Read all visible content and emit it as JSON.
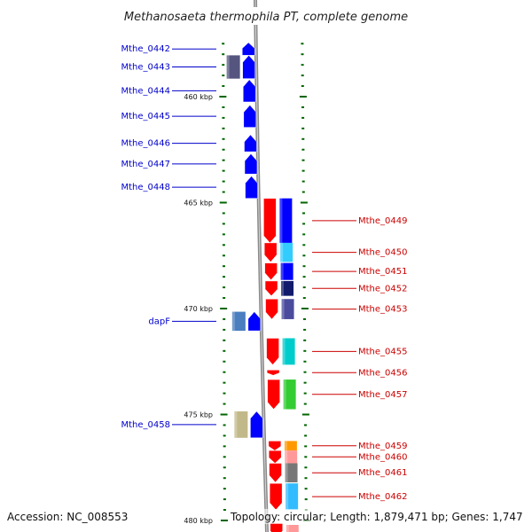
{
  "title": "Methanosaeta thermophila PT, complete genome",
  "accession": "Accession: NC_008553",
  "topology": "Topology: circular; Length: 1,879,471 bp; Genes: 1,747",
  "colors": {
    "backbone": "#8a8a8a",
    "forward_gene": "#ff0000",
    "reverse_gene": "#0000ff",
    "tick": "#006600",
    "left_label": "#0000cc",
    "right_label": "#cc0000"
  },
  "scale_labels": [
    {
      "text": "460 kbp",
      "kbp": 460
    },
    {
      "text": "465 kbp",
      "kbp": 465
    },
    {
      "text": "470 kbp",
      "kbp": 470
    },
    {
      "text": "475 kbp",
      "kbp": 475
    },
    {
      "text": "480 kbp",
      "kbp": 480
    }
  ],
  "left_genes": [
    {
      "label": "Mthe_0442",
      "start_kbp": 457.45,
      "end_kbp": 458.05,
      "cog": null
    },
    {
      "label": "Mthe_0443",
      "start_kbp": 458.05,
      "end_kbp": 459.15,
      "cog": "#555580"
    },
    {
      "label": "Mthe_0444",
      "start_kbp": 459.2,
      "end_kbp": 460.25,
      "cog": null
    },
    {
      "label": "Mthe_0445",
      "start_kbp": 460.4,
      "end_kbp": 461.45,
      "cog": null
    },
    {
      "label": "Mthe_0446",
      "start_kbp": 461.8,
      "end_kbp": 462.6,
      "cog": null
    },
    {
      "label": "Mthe_0447",
      "start_kbp": 462.7,
      "end_kbp": 463.65,
      "cog": null
    },
    {
      "label": "Mthe_0448",
      "start_kbp": 463.75,
      "end_kbp": 464.8,
      "cog": null
    },
    {
      "label": "dapF",
      "start_kbp": 470.15,
      "end_kbp": 471.05,
      "cog": "#4a7ebf"
    },
    {
      "label": "Mthe_0458",
      "start_kbp": 474.85,
      "end_kbp": 476.1,
      "cog": "#c2b98a"
    }
  ],
  "right_genes": [
    {
      "label": "Mthe_0449",
      "start_kbp": 464.8,
      "end_kbp": 466.9,
      "cog": "#0000ff"
    },
    {
      "label": "Mthe_0450",
      "start_kbp": 466.9,
      "end_kbp": 467.8,
      "cog": "#33ccff"
    },
    {
      "label": "Mthe_0451",
      "start_kbp": 467.85,
      "end_kbp": 468.65,
      "cog": "#0000ff"
    },
    {
      "label": "Mthe_0452",
      "start_kbp": 468.7,
      "end_kbp": 469.4,
      "cog": "#111a6b"
    },
    {
      "label": "Mthe_0453",
      "start_kbp": 469.55,
      "end_kbp": 470.5,
      "cog": "#4b4b9e"
    },
    {
      "label": "Mthe_0455",
      "start_kbp": 471.4,
      "end_kbp": 472.65,
      "cog": "#00cccc"
    },
    {
      "label": "Mthe_0456",
      "start_kbp": 472.9,
      "end_kbp": 473.15,
      "cog": null
    },
    {
      "label": "Mthe_0457",
      "start_kbp": 473.35,
      "end_kbp": 474.75,
      "cog": "#33cc33"
    },
    {
      "label": "Mthe_0459",
      "start_kbp": 476.25,
      "end_kbp": 476.7,
      "cog": "#ff9900"
    },
    {
      "label": "Mthe_0460",
      "start_kbp": 476.7,
      "end_kbp": 477.3,
      "cog": "#ff9999"
    },
    {
      "label": "Mthe_0461",
      "start_kbp": 477.3,
      "end_kbp": 478.2,
      "cog": "#777777"
    },
    {
      "label": "Mthe_0462",
      "start_kbp": 478.25,
      "end_kbp": 479.5,
      "cog": "#33bbff"
    }
  ]
}
